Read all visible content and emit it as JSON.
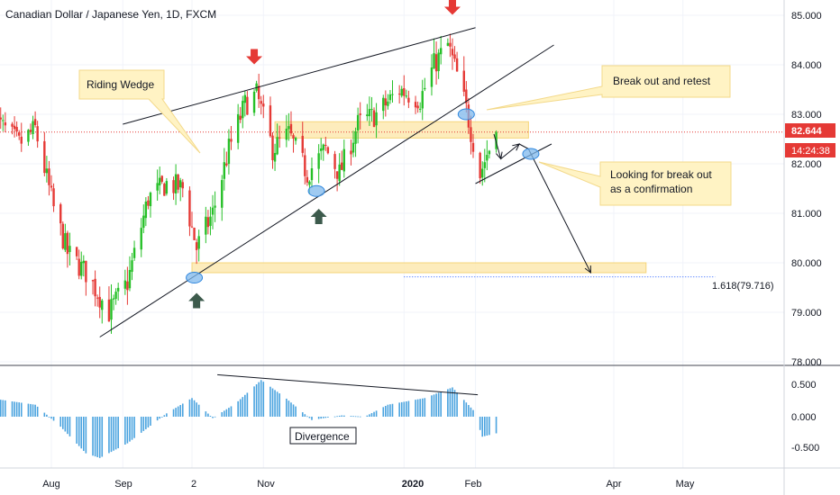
{
  "title": "Canadian Dollar / Japanese Yen, 1D, FXCM",
  "price_axis": {
    "ticks": [
      "85.000",
      "84.000",
      "83.000",
      "82.000",
      "81.000",
      "80.000",
      "79.000",
      "78.000"
    ],
    "current_price": "82.644",
    "countdown": "14:24:38"
  },
  "osc_axis": {
    "ticks": [
      "0.500",
      "0.000",
      "-0.500"
    ]
  },
  "time_axis": {
    "labels": [
      "Aug",
      "Sep",
      "2",
      "Nov",
      "2020",
      "Feb",
      "Apr",
      "May"
    ]
  },
  "annotations": {
    "riding_wedge": "Riding Wedge",
    "break_out_retest": "Break out and retest",
    "confirm_line1": "Looking for break out",
    "confirm_line2": "as a confirmation",
    "divergence": "Divergence",
    "fib_label": "1.618(79.716)"
  },
  "colors": {
    "up": "#26c028",
    "down": "#e53935",
    "zone": "#fde9b0",
    "callout": "#fff3c4",
    "hist": "#4aa3df",
    "arrow_down": "#e53935",
    "arrow_up": "#3c5a4c",
    "price_badge": "#e53935"
  },
  "chart_data": {
    "type": "candlestick",
    "instrument": "Canadian Dollar / Japanese Yen",
    "timeframe": "1D",
    "price_range": [
      77.9,
      85.3
    ],
    "close_path": [
      {
        "date": "2019-07-05",
        "price": 83.0
      },
      {
        "date": "2019-07-18",
        "price": 82.4
      },
      {
        "date": "2019-07-25",
        "price": 82.7
      },
      {
        "date": "2019-08-02",
        "price": 81.1
      },
      {
        "date": "2019-08-08",
        "price": 80.2
      },
      {
        "date": "2019-08-16",
        "price": 79.8
      },
      {
        "date": "2019-08-26",
        "price": 79.0
      },
      {
        "date": "2019-09-03",
        "price": 79.6
      },
      {
        "date": "2019-09-12",
        "price": 81.3
      },
      {
        "date": "2019-09-20",
        "price": 81.6
      },
      {
        "date": "2019-09-27",
        "price": 81.5
      },
      {
        "date": "2019-10-03",
        "price": 80.3
      },
      {
        "date": "2019-10-10",
        "price": 81.0
      },
      {
        "date": "2019-10-17",
        "price": 82.3
      },
      {
        "date": "2019-10-24",
        "price": 83.2
      },
      {
        "date": "2019-10-29",
        "price": 83.4
      },
      {
        "date": "2019-11-05",
        "price": 82.3
      },
      {
        "date": "2019-11-12",
        "price": 82.6
      },
      {
        "date": "2019-11-20",
        "price": 81.8
      },
      {
        "date": "2019-11-28",
        "price": 82.3
      },
      {
        "date": "2019-12-04",
        "price": 81.8
      },
      {
        "date": "2019-12-12",
        "price": 82.8
      },
      {
        "date": "2019-12-20",
        "price": 83.0
      },
      {
        "date": "2019-12-30",
        "price": 83.5
      },
      {
        "date": "2020-01-08",
        "price": 83.3
      },
      {
        "date": "2020-01-14",
        "price": 84.0
      },
      {
        "date": "2020-01-20",
        "price": 84.4
      },
      {
        "date": "2020-01-24",
        "price": 83.8
      },
      {
        "date": "2020-01-28",
        "price": 83.1
      },
      {
        "date": "2020-02-03",
        "price": 81.8
      },
      {
        "date": "2020-02-06",
        "price": 82.2
      },
      {
        "date": "2020-02-10",
        "price": 82.64
      }
    ],
    "oscillator": {
      "range": [
        -0.75,
        0.75
      ],
      "values": [
        {
          "date": "2019-07-05",
          "value": 0.28
        },
        {
          "date": "2019-07-25",
          "value": 0.18
        },
        {
          "date": "2019-08-05",
          "value": -0.15
        },
        {
          "date": "2019-08-16",
          "value": -0.55
        },
        {
          "date": "2019-08-22",
          "value": -0.62
        },
        {
          "date": "2019-09-03",
          "value": -0.4
        },
        {
          "date": "2019-09-20",
          "value": 0.05
        },
        {
          "date": "2019-10-01",
          "value": 0.28
        },
        {
          "date": "2019-10-10",
          "value": -0.02
        },
        {
          "date": "2019-10-20",
          "value": 0.2
        },
        {
          "date": "2019-10-31",
          "value": 0.55
        },
        {
          "date": "2019-11-10",
          "value": 0.3
        },
        {
          "date": "2019-11-22",
          "value": -0.05
        },
        {
          "date": "2019-12-05",
          "value": 0.02
        },
        {
          "date": "2019-12-15",
          "value": 0.0
        },
        {
          "date": "2019-12-25",
          "value": 0.18
        },
        {
          "date": "2020-01-10",
          "value": 0.28
        },
        {
          "date": "2020-01-22",
          "value": 0.44
        },
        {
          "date": "2020-01-31",
          "value": 0.1
        },
        {
          "date": "2020-02-04",
          "value": -0.3
        },
        {
          "date": "2020-02-10",
          "value": -0.25
        }
      ]
    },
    "trendlines": [
      {
        "name": "upper",
        "from": {
          "date": "2019-09-01",
          "price": 82.8
        },
        "to": {
          "date": "2020-02-01",
          "price": 84.75
        }
      },
      {
        "name": "lower",
        "from": {
          "date": "2019-08-22",
          "price": 78.5
        },
        "to": {
          "date": "2020-03-06",
          "price": 84.4
        }
      },
      {
        "name": "channel",
        "from": {
          "date": "2020-02-01",
          "price": 81.6
        },
        "to": {
          "date": "2020-03-05",
          "price": 82.4
        }
      },
      {
        "name": "divergence",
        "pane": "oscillator",
        "from": {
          "date": "2019-10-12",
          "value": 0.63
        },
        "to": {
          "date": "2020-02-02",
          "value": 0.33
        }
      }
    ],
    "zones": [
      {
        "from": "2019-11-06",
        "to": "2020-02-24",
        "low": 82.52,
        "high": 82.85
      },
      {
        "from": "2019-10-01",
        "to": "2020-04-15",
        "low": 79.8,
        "high": 80.0
      }
    ],
    "fib_level": {
      "ratio": "1.618",
      "price": 79.716,
      "from": "2020-01-01",
      "to": "2020-05-15"
    },
    "forecast_path": [
      {
        "date": "2020-02-09",
        "price": 82.6
      },
      {
        "date": "2020-02-12",
        "price": 82.1
      },
      {
        "date": "2020-02-20",
        "price": 82.4
      },
      {
        "date": "2020-02-24",
        "price": 82.3
      },
      {
        "date": "2020-03-22",
        "price": 79.8
      }
    ],
    "markers": [
      {
        "type": "arrow-down",
        "date": "2019-10-28",
        "price": 84.1
      },
      {
        "type": "arrow-down",
        "date": "2020-01-22",
        "price": 85.1
      },
      {
        "type": "arrow-up",
        "date": "2019-10-03",
        "price": 79.3
      },
      {
        "type": "arrow-up",
        "date": "2019-11-25",
        "price": 81.0
      }
    ],
    "touch_points": [
      {
        "date": "2019-10-02",
        "price": 79.7
      },
      {
        "date": "2019-11-24",
        "price": 81.45
      },
      {
        "date": "2020-01-28",
        "price": 83.0
      },
      {
        "date": "2020-02-25",
        "price": 82.2
      }
    ]
  }
}
